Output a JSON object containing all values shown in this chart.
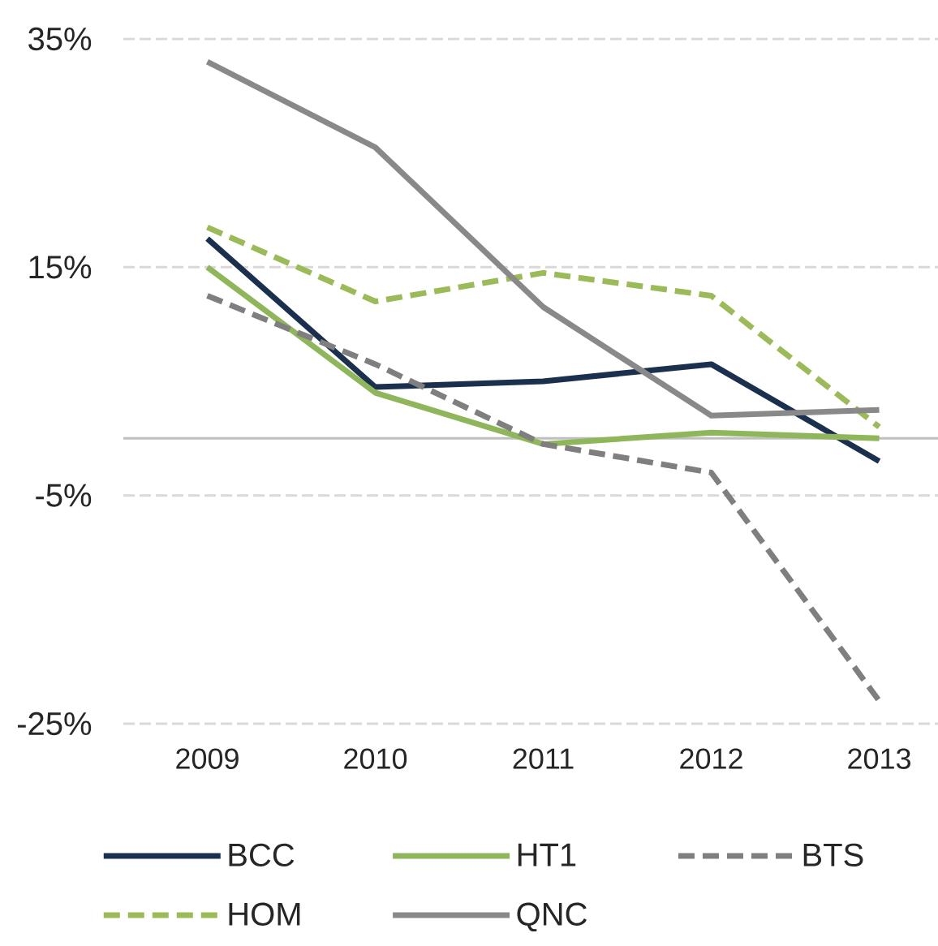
{
  "chart_data": {
    "type": "line",
    "categories": [
      "2009",
      "2010",
      "2011",
      "2012",
      "2013"
    ],
    "series": [
      {
        "name": "BCC",
        "color": "#1b2f4e",
        "line_style": "solid",
        "values": [
          17.5,
          4.5,
          5,
          6.5,
          -2
        ]
      },
      {
        "name": "HT1",
        "color": "#8fb65a",
        "line_style": "solid",
        "values": [
          15,
          4,
          -0.5,
          0.5,
          0
        ]
      },
      {
        "name": "BTS",
        "color": "#7f7f7f",
        "line_style": "dashed",
        "values": [
          12.5,
          6.5,
          -0.5,
          -3,
          -23
        ]
      },
      {
        "name": "HOM",
        "color": "#9bbb59",
        "line_style": "dashed",
        "values": [
          18.5,
          12,
          14.5,
          12.5,
          1
        ]
      },
      {
        "name": "QNC",
        "color": "#898989",
        "line_style": "solid",
        "values": [
          33,
          25.5,
          11.5,
          2,
          2.5
        ]
      }
    ],
    "ylim": [
      -25,
      35
    ],
    "yticks": [
      {
        "value": -25,
        "label": "-25%"
      },
      {
        "value": -5,
        "label": "-5%"
      },
      {
        "value": 15,
        "label": "15%"
      },
      {
        "value": 35,
        "label": "35%"
      }
    ],
    "grid": "y",
    "legend": "bottom",
    "ref_lines": [
      {
        "axis": "y",
        "value": 0,
        "color": "#bfbfbf"
      }
    ]
  }
}
